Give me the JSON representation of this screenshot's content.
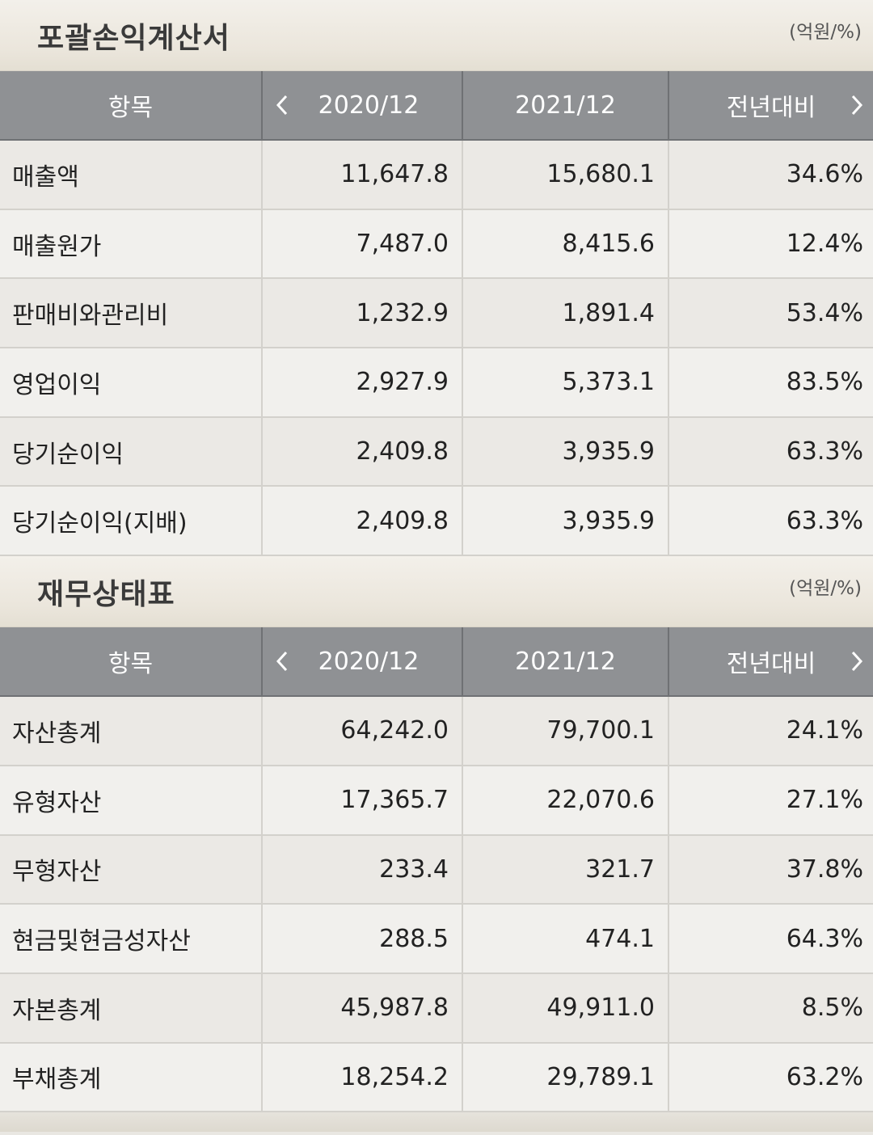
{
  "sections": [
    {
      "title": "포괄손익계산서",
      "unit": "(억원/%)",
      "header": {
        "item": "항목",
        "col1": "2020/12",
        "col2": "2021/12",
        "col3": "전년대비",
        "prev_icon": "chevron-left",
        "next_icon": "chevron-right"
      },
      "rows": [
        {
          "name": "매출액",
          "v2020": "11,647.8",
          "v2021": "15,680.1",
          "yoy": "34.6%"
        },
        {
          "name": "매출원가",
          "v2020": "7,487.0",
          "v2021": "8,415.6",
          "yoy": "12.4%"
        },
        {
          "name": "판매비와관리비",
          "v2020": "1,232.9",
          "v2021": "1,891.4",
          "yoy": "53.4%"
        },
        {
          "name": "영업이익",
          "v2020": "2,927.9",
          "v2021": "5,373.1",
          "yoy": "83.5%"
        },
        {
          "name": "당기순이익",
          "v2020": "2,409.8",
          "v2021": "3,935.9",
          "yoy": "63.3%"
        },
        {
          "name": "당기순이익(지배)",
          "v2020": "2,409.8",
          "v2021": "3,935.9",
          "yoy": "63.3%"
        }
      ]
    },
    {
      "title": "재무상태표",
      "unit": "(억원/%)",
      "header": {
        "item": "항목",
        "col1": "2020/12",
        "col2": "2021/12",
        "col3": "전년대비",
        "prev_icon": "chevron-left",
        "next_icon": "chevron-right"
      },
      "rows": [
        {
          "name": "자산총계",
          "v2020": "64,242.0",
          "v2021": "79,700.1",
          "yoy": "24.1%"
        },
        {
          "name": "유형자산",
          "v2020": "17,365.7",
          "v2021": "22,070.6",
          "yoy": "27.1%"
        },
        {
          "name": "무형자산",
          "v2020": "233.4",
          "v2021": "321.7",
          "yoy": "37.8%"
        },
        {
          "name": "현금및현금성자산",
          "v2020": "288.5",
          "v2021": "474.1",
          "yoy": "64.3%"
        },
        {
          "name": "자본총계",
          "v2020": "45,987.8",
          "v2021": "49,911.0",
          "yoy": "8.5%"
        },
        {
          "name": "부채총계",
          "v2020": "18,254.2",
          "v2021": "29,789.1",
          "yoy": "63.2%"
        }
      ]
    }
  ]
}
